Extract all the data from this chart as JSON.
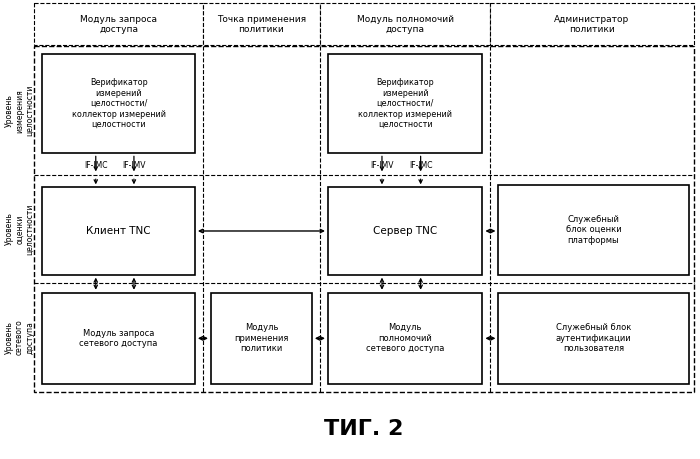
{
  "title": "ΤИГ. 2",
  "background_color": "#ffffff",
  "col_headers": [
    "Модуль запроса\nдоступа",
    "Точка применения\nполитики",
    "Модуль полномочий\nдоступа",
    "Администратор\nполитики"
  ],
  "row_labels": [
    "Уровень\nизмерения\nцелостности",
    "Уровень\nоценки\nцелостности",
    "Уровень\nсетевого\nдоступа"
  ],
  "box_verif1_text": "Верификатор\nизмерений\nцелостности/\nколлектор измерений\nцелостности",
  "box_verif2_text": "Верификатор\nизмерений\nцелостности/\nколлектор измерений\nцелостности",
  "box_client_text": "Клиент TNC",
  "box_server_text": "Сервер TNC",
  "box_platform_text": "Служебный\nблок оценки\nплатформы",
  "box_netreq_text": "Модуль запроса\nсетевого доступа",
  "box_policy_text": "Модуль\nприменения\nполитики",
  "box_netauth_text": "Модуль\nполномочий\nсетевого доступа",
  "box_userauth_text": "Служебный блок\nаутентификации\nпользователя"
}
